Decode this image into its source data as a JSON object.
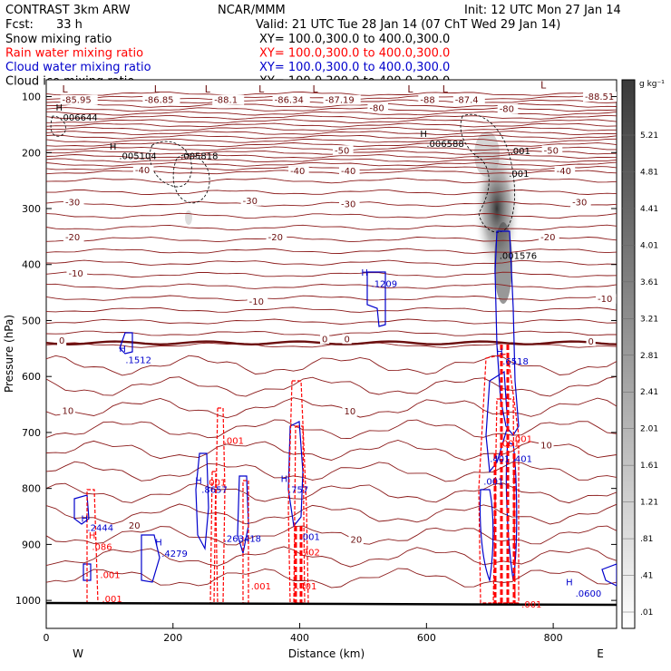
{
  "header": {
    "model": "CONTRAST  3km ARW",
    "center": "NCAR/MMM",
    "init": "Init: 12 UTC Mon 27 Jan 14",
    "fcst_label": "Fcst:",
    "fcst_value": "33 h",
    "valid": "Valid: 21 UTC Tue 28 Jan 14 (07 ChT Wed 29 Jan 14)",
    "fields": [
      {
        "name": "Snow mixing ratio",
        "xy": "XY= 100.0,300.0 to 400.0,300.0",
        "color": "#000000"
      },
      {
        "name": "Rain water mixing ratio",
        "xy": "XY= 100.0,300.0 to 400.0,300.0",
        "color": "#ff0000"
      },
      {
        "name": "Cloud water mixing ratio",
        "xy": "XY= 100.0,300.0 to 400.0,300.0",
        "color": "#0000cc"
      },
      {
        "name": "Cloud ice mixing ratio",
        "xy": "XY= 100.0,300.0 to 400.0,300.0",
        "color": "#000000"
      }
    ]
  },
  "chart_data": {
    "type": "heatmap",
    "xlabel": "Distance (km)",
    "ylabel": "Pressure (hPa)",
    "xlim": [
      0,
      900
    ],
    "ylim": [
      1050,
      70
    ],
    "x_ticks": [
      0,
      200,
      400,
      600,
      800
    ],
    "y_ticks": [
      100,
      200,
      300,
      400,
      500,
      600,
      700,
      800,
      900,
      1000
    ],
    "x_end_labels": {
      "left": "W",
      "right": "E"
    },
    "colorbar": {
      "unit": "g kg⁻¹",
      "labels": [
        "5.21",
        "4.81",
        "4.41",
        "4.01",
        "3.61",
        "3.21",
        "2.81",
        "2.41",
        "2.01",
        "1.61",
        "1.21",
        ".81",
        ".41",
        ".01"
      ]
    },
    "temperature_labels": [
      {
        "x": 25,
        "p": 110,
        "text": "-85.95"
      },
      {
        "x": 155,
        "p": 110,
        "text": "-86.85"
      },
      {
        "x": 265,
        "p": 110,
        "text": "-88.1"
      },
      {
        "x": 360,
        "p": 110,
        "text": "-86.34"
      },
      {
        "x": 440,
        "p": 110,
        "text": "-87.19"
      },
      {
        "x": 590,
        "p": 110,
        "text": "-88"
      },
      {
        "x": 645,
        "p": 110,
        "text": "-87.4"
      },
      {
        "x": 850,
        "p": 104,
        "text": "-88.51"
      },
      {
        "x": 510,
        "p": 124,
        "text": "-80"
      },
      {
        "x": 715,
        "p": 126,
        "text": "-80"
      },
      {
        "x": 455,
        "p": 200,
        "text": "-50"
      },
      {
        "x": 785,
        "p": 200,
        "text": "-50"
      },
      {
        "x": 140,
        "p": 235,
        "text": "-40"
      },
      {
        "x": 385,
        "p": 237,
        "text": "-40"
      },
      {
        "x": 465,
        "p": 237,
        "text": "-40"
      },
      {
        "x": 805,
        "p": 237,
        "text": "-40"
      },
      {
        "x": 30,
        "p": 293,
        "text": "-30"
      },
      {
        "x": 310,
        "p": 290,
        "text": "-30"
      },
      {
        "x": 465,
        "p": 296,
        "text": "-30"
      },
      {
        "x": 830,
        "p": 293,
        "text": "-30"
      },
      {
        "x": 30,
        "p": 355,
        "text": "-20"
      },
      {
        "x": 350,
        "p": 355,
        "text": "-20"
      },
      {
        "x": 780,
        "p": 355,
        "text": "-20"
      },
      {
        "x": 35,
        "p": 420,
        "text": "-10"
      },
      {
        "x": 320,
        "p": 470,
        "text": "-10"
      },
      {
        "x": 870,
        "p": 465,
        "text": "-10"
      },
      {
        "x": 20,
        "p": 540,
        "text": "0"
      },
      {
        "x": 435,
        "p": 537,
        "text": "0"
      },
      {
        "x": 470,
        "p": 537,
        "text": "0"
      },
      {
        "x": 855,
        "p": 541,
        "text": "0"
      },
      {
        "x": 25,
        "p": 665,
        "text": "10"
      },
      {
        "x": 470,
        "p": 666,
        "text": "10"
      },
      {
        "x": 780,
        "p": 727,
        "text": "10"
      },
      {
        "x": 130,
        "p": 870,
        "text": "20"
      },
      {
        "x": 480,
        "p": 895,
        "text": "20"
      }
    ],
    "cloud_water_labels": [
      {
        "x": 15,
        "p": 125,
        "text": "H",
        "color": "#000000"
      },
      {
        "x": 22,
        "p": 143,
        "text": ".006644",
        "color": "#000000"
      },
      {
        "x": 100,
        "p": 195,
        "text": "H",
        "color": "#000000"
      },
      {
        "x": 115,
        "p": 212,
        "text": ".005104",
        "color": "#000000"
      },
      {
        "x": 212,
        "p": 212,
        "text": ".005818",
        "color": "#000000"
      },
      {
        "x": 590,
        "p": 172,
        "text": "H",
        "color": "#000000"
      },
      {
        "x": 600,
        "p": 190,
        "text": ".006588",
        "color": "#000000"
      },
      {
        "x": 732,
        "p": 203,
        "text": ".001",
        "color": "#000000"
      },
      {
        "x": 730,
        "p": 243,
        "text": ".001",
        "color": "#000000"
      },
      {
        "x": 715,
        "p": 390,
        "text": ".001576",
        "color": "#000000"
      },
      {
        "x": 497,
        "p": 420,
        "text": "H",
        "color": "#0000cc"
      },
      {
        "x": 513,
        "p": 440,
        "text": ".1209",
        "color": "#0000cc"
      },
      {
        "x": 115,
        "p": 556,
        "text": "H",
        "color": "#0000cc"
      },
      {
        "x": 125,
        "p": 576,
        "text": ".1512",
        "color": "#0000cc"
      },
      {
        "x": 710,
        "p": 562,
        "text": "H",
        "color": "#0000cc"
      },
      {
        "x": 720,
        "p": 579,
        "text": ".6518",
        "color": "#0000cc"
      },
      {
        "x": 280,
        "p": 720,
        "text": ".001",
        "color": "#ff0000"
      },
      {
        "x": 715,
        "p": 725,
        "text": ".001",
        "color": "#ff0000"
      },
      {
        "x": 735,
        "p": 717,
        "text": ".001",
        "color": "#ff0000"
      },
      {
        "x": 700,
        "p": 753,
        "text": ".401",
        "color": "#0000cc"
      },
      {
        "x": 735,
        "p": 753,
        "text": ".401",
        "color": "#0000cc"
      },
      {
        "x": 235,
        "p": 792,
        "text": "H",
        "color": "#0000cc"
      },
      {
        "x": 245,
        "p": 808,
        "text": ".8657",
        "color": "#0000cc"
      },
      {
        "x": 252,
        "p": 795,
        "text": ".001",
        "color": "#ff0000"
      },
      {
        "x": 370,
        "p": 788,
        "text": "H",
        "color": "#0000cc"
      },
      {
        "x": 382,
        "p": 808,
        "text": ".757",
        "color": "#0000cc"
      },
      {
        "x": 690,
        "p": 793,
        "text": ".001",
        "color": "#0000cc"
      },
      {
        "x": 55,
        "p": 860,
        "text": "H",
        "color": "#0000cc"
      },
      {
        "x": 65,
        "p": 876,
        "text": ".2444",
        "color": "#0000cc"
      },
      {
        "x": 67,
        "p": 890,
        "text": "H",
        "color": "#ff0000"
      },
      {
        "x": 72,
        "p": 910,
        "text": ".086",
        "color": "#ff0000"
      },
      {
        "x": 280,
        "p": 895,
        "text": ".263418",
        "color": "#0000cc"
      },
      {
        "x": 400,
        "p": 892,
        "text": ".001",
        "color": "#0000cc"
      },
      {
        "x": 172,
        "p": 902,
        "text": "H",
        "color": "#0000cc"
      },
      {
        "x": 182,
        "p": 922,
        "text": ".4279",
        "color": "#0000cc"
      },
      {
        "x": 400,
        "p": 920,
        "text": ".702",
        "color": "#ff0000"
      },
      {
        "x": 85,
        "p": 960,
        "text": ".001",
        "color": "#ff0000"
      },
      {
        "x": 323,
        "p": 980,
        "text": ".001",
        "color": "#ff0000"
      },
      {
        "x": 395,
        "p": 980,
        "text": ".401",
        "color": "#ff0000"
      },
      {
        "x": 88,
        "p": 1003,
        "text": ".001",
        "color": "#ff0000"
      },
      {
        "x": 750,
        "p": 1013,
        "text": ".001",
        "color": "#ff0000"
      },
      {
        "x": 820,
        "p": 973,
        "text": "H",
        "color": "#0000cc"
      },
      {
        "x": 835,
        "p": 993,
        "text": ".0600",
        "color": "#0000cc"
      }
    ],
    "low_markers": [
      {
        "x": 25,
        "p": 93,
        "text": "L"
      },
      {
        "x": 170,
        "p": 93,
        "text": "L"
      },
      {
        "x": 250,
        "p": 93,
        "text": "L"
      },
      {
        "x": 335,
        "p": 93,
        "text": "L"
      },
      {
        "x": 420,
        "p": 93,
        "text": "L"
      },
      {
        "x": 570,
        "p": 93,
        "text": "L"
      },
      {
        "x": 625,
        "p": 93,
        "text": "L"
      },
      {
        "x": 780,
        "p": 85,
        "text": "L"
      }
    ]
  }
}
